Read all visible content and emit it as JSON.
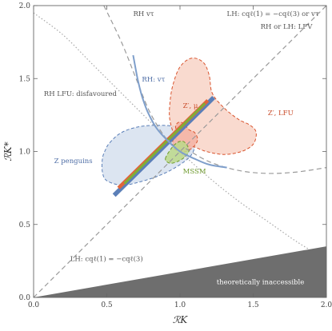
{
  "chart_data": {
    "type": "scatter",
    "xlabel": "ℛK",
    "ylabel": "ℛK*",
    "xlim": [
      0,
      2
    ],
    "ylim": [
      0,
      2
    ],
    "xticks": [
      "0.0",
      "0.5",
      "1.0",
      "1.5",
      "2.0"
    ],
    "yticks": [
      "0.0",
      "0.5",
      "1.0",
      "1.5",
      "2.0"
    ],
    "grid": false,
    "regions": [
      {
        "name": "Z penguins",
        "color": "#5b7fb8",
        "fill": "#d6e0ef",
        "points": [
          [
            0.52,
            1.06
          ],
          [
            0.6,
            1.13
          ],
          [
            0.72,
            1.17
          ],
          [
            0.85,
            1.18
          ],
          [
            0.97,
            1.17
          ],
          [
            1.06,
            1.13
          ],
          [
            1.1,
            1.06
          ],
          [
            1.08,
            0.98
          ],
          [
            1.0,
            0.91
          ],
          [
            0.87,
            0.84
          ],
          [
            0.72,
            0.79
          ],
          [
            0.6,
            0.77
          ],
          [
            0.5,
            0.8
          ],
          [
            0.47,
            0.86
          ],
          [
            0.47,
            0.95
          ],
          [
            0.49,
            1.01
          ]
        ]
      },
      {
        "name": "Z′, μ",
        "color": "#d9542e",
        "fill": "#f8d3c7",
        "points": [
          [
            0.96,
            1.11
          ],
          [
            0.93,
            1.22
          ],
          [
            0.93,
            1.32
          ],
          [
            0.95,
            1.45
          ],
          [
            1.0,
            1.58
          ],
          [
            1.08,
            1.64
          ],
          [
            1.16,
            1.61
          ],
          [
            1.2,
            1.52
          ],
          [
            1.22,
            1.4
          ],
          [
            1.3,
            1.3
          ],
          [
            1.4,
            1.22
          ],
          [
            1.48,
            1.18
          ],
          [
            1.52,
            1.13
          ],
          [
            1.5,
            1.05
          ],
          [
            1.42,
            1.0
          ],
          [
            1.3,
            0.98
          ],
          [
            1.18,
            1.0
          ],
          [
            1.1,
            1.03
          ],
          [
            1.02,
            1.05
          ],
          [
            0.98,
            1.08
          ]
        ]
      },
      {
        "name": "Z′, LFU",
        "color": "#d9542e",
        "fill": "#f4b3a3",
        "points": [
          [
            0.98,
            1.12
          ],
          [
            0.97,
            1.17
          ],
          [
            0.99,
            1.2
          ],
          [
            1.03,
            1.19
          ],
          [
            1.06,
            1.15
          ],
          [
            1.1,
            1.13
          ],
          [
            1.12,
            1.08
          ],
          [
            1.09,
            1.03
          ],
          [
            1.04,
            1.0
          ],
          [
            1.0,
            1.0
          ],
          [
            0.96,
            1.02
          ],
          [
            0.95,
            1.07
          ]
        ]
      },
      {
        "name": "MSSM",
        "color": "#6f9a2e",
        "fill": "#bcd98a",
        "points": [
          [
            0.9,
            0.95
          ],
          [
            0.94,
            1.02
          ],
          [
            0.98,
            1.06
          ],
          [
            1.02,
            1.07
          ],
          [
            1.05,
            1.04
          ],
          [
            1.06,
            1.0
          ],
          [
            1.03,
            0.96
          ],
          [
            0.98,
            0.93
          ],
          [
            0.93,
            0.92
          ]
        ]
      }
    ],
    "lines": [
      {
        "name": "LH: cqℓ(1) = −cqℓ(3)",
        "style": "dashed",
        "color": "#9a9a9a",
        "points": [
          [
            0.0,
            0.0
          ],
          [
            2.0,
            2.0
          ]
        ]
      },
      {
        "name": "RH or LH: LFV",
        "style": "dashed",
        "color": "#9a9a9a",
        "points": [
          [
            1.04,
            1.02
          ],
          [
            1.2,
            0.93
          ],
          [
            1.4,
            0.87
          ],
          [
            1.6,
            0.85
          ],
          [
            1.8,
            0.86
          ],
          [
            2.0,
            0.89
          ]
        ]
      },
      {
        "name": "RH vτ",
        "style": "dashed",
        "color": "#9a9a9a",
        "points": [
          [
            0.48,
            2.0
          ],
          [
            0.6,
            1.75
          ],
          [
            0.7,
            1.5
          ],
          [
            0.78,
            1.3
          ],
          [
            0.85,
            1.17
          ],
          [
            0.92,
            1.07
          ],
          [
            0.97,
            1.02
          ]
        ]
      },
      {
        "name": "RH LFU: disfavoured",
        "style": "dotted",
        "color": "#a8a8a8",
        "points": [
          [
            0.0,
            1.95
          ],
          [
            0.2,
            1.8
          ],
          [
            0.4,
            1.6
          ],
          [
            0.6,
            1.4
          ],
          [
            0.8,
            1.2
          ],
          [
            1.0,
            1.0
          ],
          [
            1.2,
            0.82
          ],
          [
            1.4,
            0.66
          ],
          [
            1.6,
            0.52
          ],
          [
            1.8,
            0.38
          ],
          [
            2.0,
            0.26
          ]
        ]
      },
      {
        "name": "RH: vτ",
        "style": "solid",
        "color": "#7f9fcb",
        "points": [
          [
            0.68,
            1.66
          ],
          [
            0.71,
            1.5
          ],
          [
            0.74,
            1.38
          ],
          [
            0.78,
            1.27
          ],
          [
            0.84,
            1.16
          ],
          [
            0.92,
            1.07
          ],
          [
            1.0,
            1.0
          ],
          [
            1.1,
            0.95
          ],
          [
            1.2,
            0.91
          ],
          [
            1.32,
            0.89
          ]
        ]
      }
    ],
    "bands": [
      {
        "name": "SM-direction band (blue)",
        "color": "#5b7fb8",
        "points": [
          [
            0.55,
            0.7
          ],
          [
            1.23,
            1.37
          ]
        ]
      },
      {
        "name": "SM-direction band (orange)",
        "color": "#e0643a",
        "points": [
          [
            0.58,
            0.75
          ],
          [
            1.19,
            1.35
          ]
        ]
      },
      {
        "name": "SM-direction band (green)",
        "color": "#7fae36",
        "points": [
          [
            0.62,
            0.78
          ],
          [
            1.17,
            1.33
          ]
        ]
      }
    ],
    "excluded_region": {
      "name": "theoretically inaccessible",
      "color": "#6e6e6e",
      "points": [
        [
          0.0,
          0.0
        ],
        [
          2.0,
          0.0
        ],
        [
          2.0,
          0.35
        ]
      ]
    },
    "annotations": [
      {
        "text": "RH  vτ",
        "at": [
          0.68,
          1.93
        ],
        "color": "#555555"
      },
      {
        "text": "LH: cqℓ(1) = −cqℓ(3) or  vτ",
        "at": [
          1.32,
          1.93
        ],
        "color": "#555555"
      },
      {
        "text": "RH or LH: LFV",
        "at": [
          1.55,
          1.84
        ],
        "color": "#555555"
      },
      {
        "text": "RH LFU: disfavoured",
        "at": [
          0.07,
          1.38
        ],
        "color": "#555555"
      },
      {
        "text": "RH: vτ",
        "at": [
          0.74,
          1.48
        ],
        "color": "#4f6ea6"
      },
      {
        "text": "Z′, μ",
        "at": [
          1.02,
          1.3
        ],
        "color": "#c94a28"
      },
      {
        "text": "Z′, LFU",
        "at": [
          1.6,
          1.25
        ],
        "color": "#c94a28"
      },
      {
        "text": "Z penguins",
        "at": [
          0.14,
          0.92
        ],
        "color": "#4f6ea6"
      },
      {
        "text": "MSSM",
        "at": [
          1.02,
          0.85
        ],
        "color": "#6f9a2e"
      },
      {
        "text": "LH: cqℓ(1) = −cqℓ(3)",
        "at": [
          0.25,
          0.25
        ],
        "color": "#555555"
      },
      {
        "text": "theoretically    inaccessible",
        "at": [
          1.25,
          0.09
        ],
        "color": "#ffffff"
      }
    ]
  }
}
